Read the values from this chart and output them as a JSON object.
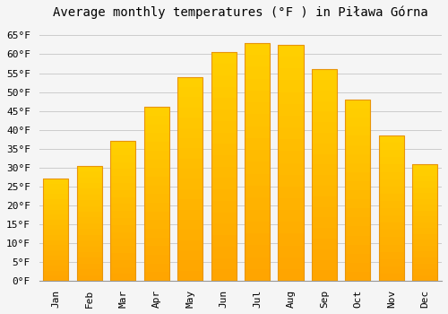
{
  "title": "Average monthly temperatures (°F ) in Piława Górna",
  "months": [
    "Jan",
    "Feb",
    "Mar",
    "Apr",
    "May",
    "Jun",
    "Jul",
    "Aug",
    "Sep",
    "Oct",
    "Nov",
    "Dec"
  ],
  "values": [
    27,
    30.5,
    37,
    46,
    54,
    60.5,
    63,
    62.5,
    56,
    48,
    38.5,
    31
  ],
  "bar_color_top": "#FFB300",
  "bar_color_bottom": "#FFA500",
  "bar_edge_color": "#E8950A",
  "background_color": "#F5F5F5",
  "plot_bg_color": "#F5F5F5",
  "grid_color": "#CCCCCC",
  "yticks": [
    0,
    5,
    10,
    15,
    20,
    25,
    30,
    35,
    40,
    45,
    50,
    55,
    60,
    65
  ],
  "ylim": [
    0,
    68
  ],
  "title_fontsize": 10,
  "tick_fontsize": 8,
  "bar_width": 0.75,
  "font_family": "monospace"
}
